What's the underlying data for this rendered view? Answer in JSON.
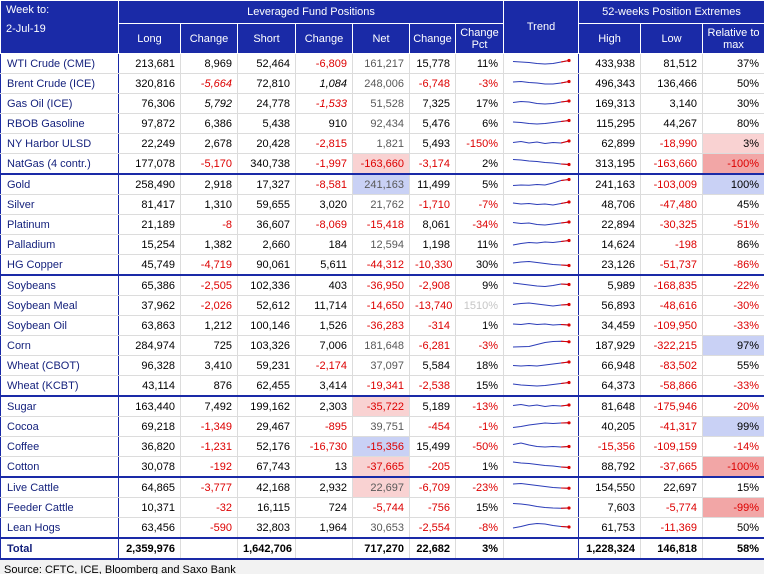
{
  "colors": {
    "header_bg": "#1a2aa7",
    "negative_text": "#dd0000",
    "net_positive_text": "#595959",
    "commodity_text": "#121f7b",
    "highlight_pink": "#f9d2d2",
    "highlight_red": "#f2a6a6",
    "highlight_blue": "#c9d1f5",
    "sparkline_line": "#2c3db8",
    "sparkline_end": "#dd0000"
  },
  "header": {
    "week_label": "Week to:",
    "week_date": "2-Jul-19",
    "positions_group": "Leveraged Fund Positions",
    "trend": "Trend",
    "extremes_group": "52-weeks Position Extremes",
    "cols": {
      "long": "Long",
      "change": "Change",
      "short": "Short",
      "change2": "Change",
      "net": "Net",
      "change3": "Change",
      "change_pct": "Change Pct",
      "high": "High",
      "low": "Low",
      "rel": "Relative to max"
    }
  },
  "chart_data": {
    "type": "table",
    "columns": [
      "Commodity",
      "Long",
      "Change",
      "Short",
      "Change",
      "Net",
      "Change",
      "Change Pct",
      "Trend",
      "High",
      "Low",
      "Relative to max"
    ],
    "rows": [
      {
        "name": "WTI Crude (CME)",
        "v": [
          "213,681",
          "8,969",
          "52,464",
          "-6,809",
          "161,217",
          "15,778",
          "11%",
          "433,938",
          "81,512",
          "37%"
        ],
        "trend": [
          0.55,
          0.5,
          0.45,
          0.35,
          0.3,
          0.35,
          0.5,
          0.65
        ]
      },
      {
        "name": "Brent Crude (ICE)",
        "v": [
          "320,816",
          "-5,664",
          "72,810",
          "1,084",
          "248,006",
          "-6,748",
          "-3%",
          "496,343",
          "136,466",
          "50%"
        ],
        "italic_cols": [
          1,
          3
        ],
        "trend": [
          0.5,
          0.55,
          0.45,
          0.4,
          0.3,
          0.3,
          0.4,
          0.55
        ]
      },
      {
        "name": "Gas Oil (ICE)",
        "v": [
          "76,306",
          "5,792",
          "24,778",
          "-1,533",
          "51,528",
          "7,325",
          "17%",
          "169,313",
          "3,140",
          "30%"
        ],
        "italic_cols": [
          1,
          3
        ],
        "trend": [
          0.45,
          0.55,
          0.5,
          0.35,
          0.3,
          0.35,
          0.5,
          0.6
        ]
      },
      {
        "name": "RBOB Gasoline",
        "v": [
          "97,872",
          "6,386",
          "5,438",
          "910",
          "92,434",
          "5,476",
          "6%",
          "115,295",
          "44,267",
          "80%"
        ],
        "trend": [
          0.5,
          0.45,
          0.35,
          0.3,
          0.35,
          0.45,
          0.55,
          0.65
        ]
      },
      {
        "name": "NY Harbor ULSD",
        "v": [
          "22,249",
          "2,678",
          "20,428",
          "-2,815",
          "1,821",
          "5,493",
          "-150%",
          "62,899",
          "-18,990",
          "3%"
        ],
        "rel_bg": "pink",
        "trend": [
          0.45,
          0.55,
          0.4,
          0.5,
          0.35,
          0.45,
          0.4,
          0.6
        ]
      },
      {
        "name": "NatGas (4 contr.)",
        "v": [
          "177,078",
          "-5,170",
          "340,738",
          "-1,997",
          "-163,660",
          "-3,174",
          "2%",
          "313,195",
          "-163,660",
          "-100%"
        ],
        "net_bg": "pink",
        "rel_bg": "red",
        "trend": [
          0.75,
          0.7,
          0.6,
          0.55,
          0.45,
          0.4,
          0.3,
          0.25
        ]
      },
      {
        "name": "Gold",
        "v": [
          "258,490",
          "2,918",
          "17,327",
          "-8,581",
          "241,163",
          "11,499",
          "5%",
          "241,163",
          "-103,009",
          "100%"
        ],
        "net_bg": "blue",
        "rel_bg": "blue",
        "group_start": true,
        "trend": [
          0.25,
          0.3,
          0.28,
          0.35,
          0.3,
          0.5,
          0.75,
          0.85
        ]
      },
      {
        "name": "Silver",
        "v": [
          "81,417",
          "1,310",
          "59,655",
          "3,020",
          "21,762",
          "-1,710",
          "-7%",
          "48,706",
          "-47,480",
          "45%"
        ],
        "trend": [
          0.5,
          0.4,
          0.45,
          0.35,
          0.4,
          0.3,
          0.45,
          0.6
        ]
      },
      {
        "name": "Platinum",
        "v": [
          "21,189",
          "-8",
          "36,607",
          "-8,069",
          "-15,418",
          "8,061",
          "-34%",
          "22,894",
          "-30,325",
          "-51%"
        ],
        "trend": [
          0.55,
          0.45,
          0.5,
          0.35,
          0.3,
          0.4,
          0.5,
          0.6
        ]
      },
      {
        "name": "Palladium",
        "v": [
          "15,254",
          "1,382",
          "2,660",
          "184",
          "12,594",
          "1,198",
          "11%",
          "14,624",
          "-198",
          "86%"
        ],
        "trend": [
          0.3,
          0.45,
          0.55,
          0.5,
          0.6,
          0.55,
          0.65,
          0.75
        ]
      },
      {
        "name": "HG Copper",
        "v": [
          "45,749",
          "-4,719",
          "90,061",
          "5,611",
          "-44,312",
          "-10,330",
          "30%",
          "23,126",
          "-51,737",
          "-86%"
        ],
        "trend": [
          0.5,
          0.6,
          0.65,
          0.55,
          0.45,
          0.35,
          0.3,
          0.25
        ]
      },
      {
        "name": "Soybeans",
        "v": [
          "65,386",
          "-2,505",
          "102,336",
          "403",
          "-36,950",
          "-2,908",
          "9%",
          "5,989",
          "-168,835",
          "-22%"
        ],
        "group_start": true,
        "trend": [
          0.6,
          0.5,
          0.4,
          0.3,
          0.25,
          0.35,
          0.5,
          0.45
        ]
      },
      {
        "name": "Soybean Meal",
        "v": [
          "37,962",
          "-2,026",
          "52,612",
          "11,714",
          "-14,650",
          "-13,740",
          "1510%",
          "56,893",
          "-48,616",
          "-30%"
        ],
        "pct_faded": true,
        "trend": [
          0.45,
          0.55,
          0.6,
          0.5,
          0.4,
          0.3,
          0.4,
          0.45
        ]
      },
      {
        "name": "Soybean Oil",
        "v": [
          "63,863",
          "1,212",
          "100,146",
          "1,526",
          "-36,283",
          "-314",
          "1%",
          "34,459",
          "-109,950",
          "-33%"
        ],
        "trend": [
          0.5,
          0.45,
          0.55,
          0.45,
          0.5,
          0.4,
          0.45,
          0.4
        ]
      },
      {
        "name": "Corn",
        "v": [
          "284,974",
          "725",
          "103,326",
          "7,006",
          "181,648",
          "-6,281",
          "-3%",
          "187,929",
          "-322,215",
          "97%"
        ],
        "rel_bg": "blue",
        "trend": [
          0.2,
          0.22,
          0.25,
          0.45,
          0.65,
          0.75,
          0.78,
          0.72
        ]
      },
      {
        "name": "Wheat (CBOT)",
        "v": [
          "96,328",
          "3,410",
          "59,231",
          "-2,174",
          "37,097",
          "5,584",
          "18%",
          "66,948",
          "-83,502",
          "55%"
        ],
        "trend": [
          0.35,
          0.3,
          0.35,
          0.3,
          0.4,
          0.5,
          0.6,
          0.7
        ]
      },
      {
        "name": "Wheat (KCBT)",
        "v": [
          "43,114",
          "876",
          "62,455",
          "3,414",
          "-19,341",
          "-2,538",
          "15%",
          "64,373",
          "-58,866",
          "-33%"
        ],
        "trend": [
          0.5,
          0.4,
          0.35,
          0.3,
          0.35,
          0.45,
          0.55,
          0.65
        ]
      },
      {
        "name": "Sugar",
        "v": [
          "163,440",
          "7,492",
          "199,162",
          "2,303",
          "-35,722",
          "5,189",
          "-13%",
          "81,648",
          "-175,946",
          "-20%"
        ],
        "net_bg": "pink",
        "group_start": true,
        "trend": [
          0.45,
          0.55,
          0.4,
          0.5,
          0.35,
          0.45,
          0.4,
          0.5
        ]
      },
      {
        "name": "Cocoa",
        "v": [
          "69,218",
          "-1,349",
          "29,467",
          "-895",
          "39,751",
          "-454",
          "-1%",
          "40,205",
          "-41,317",
          "99%"
        ],
        "rel_bg": "blue",
        "trend": [
          0.25,
          0.35,
          0.5,
          0.6,
          0.7,
          0.65,
          0.7,
          0.72
        ]
      },
      {
        "name": "Coffee",
        "v": [
          "36,820",
          "-1,231",
          "52,176",
          "-16,730",
          "-15,356",
          "15,499",
          "-50%",
          "-15,356",
          "-109,159",
          "-14%"
        ],
        "net_bg": "blue",
        "trend": [
          0.55,
          0.7,
          0.5,
          0.35,
          0.3,
          0.35,
          0.3,
          0.35
        ]
      },
      {
        "name": "Cotton",
        "v": [
          "30,078",
          "-192",
          "67,743",
          "13",
          "-37,665",
          "-205",
          "1%",
          "88,792",
          "-37,665",
          "-100%"
        ],
        "net_bg": "pink",
        "rel_bg": "red",
        "trend": [
          0.8,
          0.7,
          0.65,
          0.55,
          0.45,
          0.4,
          0.3,
          0.25
        ]
      },
      {
        "name": "Live Cattle",
        "v": [
          "64,865",
          "-3,777",
          "42,168",
          "2,932",
          "22,697",
          "-6,709",
          "-23%",
          "154,550",
          "22,697",
          "15%"
        ],
        "net_bg": "pink",
        "group_start": true,
        "trend": [
          0.7,
          0.75,
          0.65,
          0.55,
          0.45,
          0.35,
          0.3,
          0.28
        ]
      },
      {
        "name": "Feeder Cattle",
        "v": [
          "10,371",
          "-32",
          "16,115",
          "724",
          "-5,744",
          "-756",
          "15%",
          "7,603",
          "-5,774",
          "-99%"
        ],
        "rel_bg": "red",
        "trend": [
          0.75,
          0.7,
          0.6,
          0.45,
          0.35,
          0.3,
          0.28,
          0.3
        ]
      },
      {
        "name": "Lean Hogs",
        "v": [
          "63,456",
          "-590",
          "32,803",
          "1,964",
          "30,653",
          "-2,554",
          "-8%",
          "61,753",
          "-11,369",
          "50%"
        ],
        "trend": [
          0.3,
          0.45,
          0.65,
          0.75,
          0.7,
          0.55,
          0.45,
          0.4
        ]
      }
    ],
    "total": {
      "name": "Total",
      "v": [
        "2,359,976",
        "",
        "1,642,706",
        "",
        "717,270",
        "22,682",
        "3%",
        "1,228,324",
        "146,818",
        "58%"
      ]
    }
  },
  "footer": {
    "source": "Source: CFTC, ICE, Bloomberg and Saxo Bank"
  }
}
